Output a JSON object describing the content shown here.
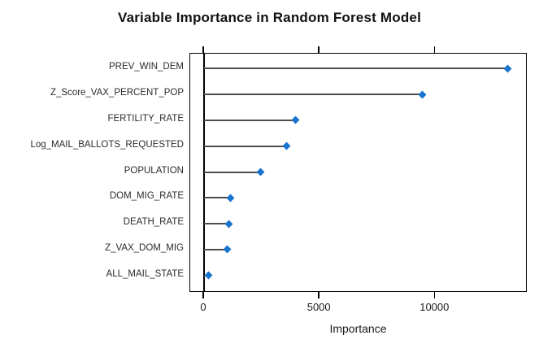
{
  "title": "Variable Importance in Random Forest Model",
  "chart_data": {
    "type": "lollipop",
    "orientation": "horizontal",
    "title": "Variable Importance in Random Forest Model",
    "xlabel": "Importance",
    "ylabel": "",
    "categories": [
      "PREV_WIN_DEM",
      "Z_Score_VAX_PERCENT_POP",
      "FERTILITY_RATE",
      "Log_MAIL_BALLOTS_REQUESTED",
      "POPULATION",
      "DOM_MIG_RATE",
      "DEATH_RATE",
      "Z_VAX_DOM_MIG",
      "ALL_MAIL_STATE"
    ],
    "values": [
      13150,
      9430,
      3970,
      3570,
      2430,
      1150,
      1080,
      1000,
      200
    ],
    "xlim": [
      -600,
      14000
    ],
    "xticks": [
      0,
      5000,
      10000
    ],
    "xtick_labels": [
      "0",
      "5000",
      "10000"
    ],
    "grid": false,
    "legend": null,
    "zero_line": true,
    "point_shape": "diamond",
    "point_color": "#1874CD",
    "stick_color": "#4d4d4d",
    "axis_color": "#000000"
  }
}
